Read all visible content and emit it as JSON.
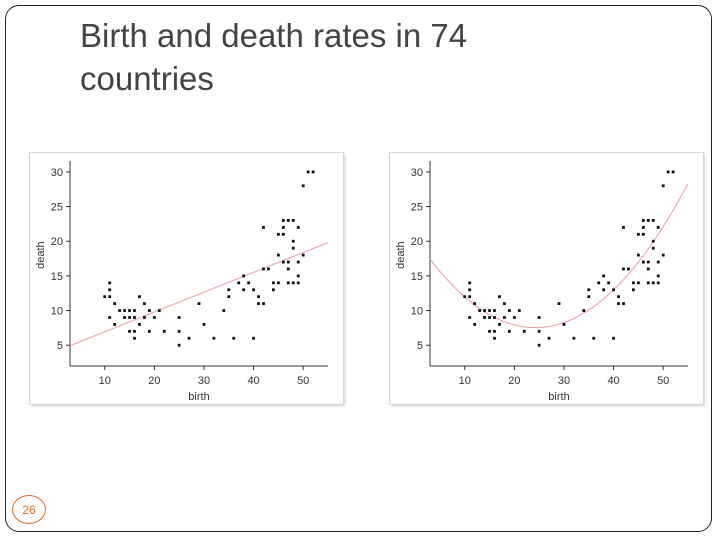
{
  "slide": {
    "title": "Birth and death rates in 74 countries",
    "page_number": "26",
    "accent_color": "#e06a1a"
  },
  "chart_data": [
    {
      "type": "scatter",
      "fit": "linear",
      "fit_color": "#e8a6a6",
      "xlabel": "birth",
      "ylabel": "death",
      "xlim": [
        3,
        55
      ],
      "ylim": [
        2,
        31
      ],
      "xticks": [
        10,
        20,
        30,
        40,
        50
      ],
      "yticks": [
        5,
        10,
        15,
        20,
        25,
        30
      ],
      "grid": false,
      "x": [
        10,
        11,
        11,
        11,
        11,
        12,
        12,
        13,
        14,
        14,
        15,
        15,
        15,
        16,
        16,
        16,
        16,
        17,
        17,
        18,
        18,
        19,
        19,
        20,
        21,
        22,
        25,
        25,
        25,
        27,
        29,
        30,
        32,
        34,
        35,
        35,
        36,
        37,
        38,
        38,
        39,
        40,
        40,
        41,
        41,
        42,
        42,
        42,
        43,
        44,
        44,
        45,
        45,
        45,
        46,
        46,
        46,
        46,
        47,
        47,
        47,
        47,
        48,
        48,
        48,
        48,
        49,
        49,
        49,
        49,
        50,
        50,
        51,
        52
      ],
      "y": [
        12,
        9,
        12,
        13,
        14,
        8,
        11,
        10,
        9,
        10,
        7,
        9,
        10,
        6,
        7,
        9,
        10,
        8,
        12,
        9,
        11,
        10,
        7,
        9,
        10,
        7,
        9,
        5,
        7,
        6,
        11,
        8,
        6,
        10,
        13,
        12,
        6,
        14,
        15,
        13,
        14,
        13,
        6,
        11,
        12,
        11,
        16,
        22,
        16,
        13,
        14,
        18,
        21,
        14,
        17,
        21,
        23,
        22,
        14,
        23,
        17,
        16,
        19,
        23,
        14,
        20,
        17,
        15,
        14,
        22,
        18,
        28,
        30,
        30
      ]
    },
    {
      "type": "scatter",
      "fit": "quadratic",
      "fit_color": "#e8a6a6",
      "xlabel": "birth",
      "ylabel": "death",
      "xlim": [
        3,
        55
      ],
      "ylim": [
        2,
        31
      ],
      "xticks": [
        10,
        20,
        30,
        40,
        50
      ],
      "yticks": [
        5,
        10,
        15,
        20,
        25,
        30
      ],
      "grid": false,
      "x": [
        10,
        11,
        11,
        11,
        11,
        12,
        12,
        13,
        14,
        14,
        15,
        15,
        15,
        16,
        16,
        16,
        16,
        17,
        17,
        18,
        18,
        19,
        19,
        20,
        21,
        22,
        25,
        25,
        25,
        27,
        29,
        30,
        32,
        34,
        35,
        35,
        36,
        37,
        38,
        38,
        39,
        40,
        40,
        41,
        41,
        42,
        42,
        42,
        43,
        44,
        44,
        45,
        45,
        45,
        46,
        46,
        46,
        46,
        47,
        47,
        47,
        47,
        48,
        48,
        48,
        48,
        49,
        49,
        49,
        49,
        50,
        50,
        51,
        52
      ],
      "y": [
        12,
        9,
        12,
        13,
        14,
        8,
        11,
        10,
        9,
        10,
        7,
        9,
        10,
        6,
        7,
        9,
        10,
        8,
        12,
        9,
        11,
        10,
        7,
        9,
        10,
        7,
        9,
        5,
        7,
        6,
        11,
        8,
        6,
        10,
        13,
        12,
        6,
        14,
        15,
        13,
        14,
        13,
        6,
        11,
        12,
        11,
        16,
        22,
        16,
        13,
        14,
        18,
        21,
        14,
        17,
        21,
        23,
        22,
        14,
        23,
        17,
        16,
        19,
        23,
        14,
        20,
        17,
        15,
        14,
        22,
        18,
        28,
        30,
        30
      ]
    }
  ]
}
